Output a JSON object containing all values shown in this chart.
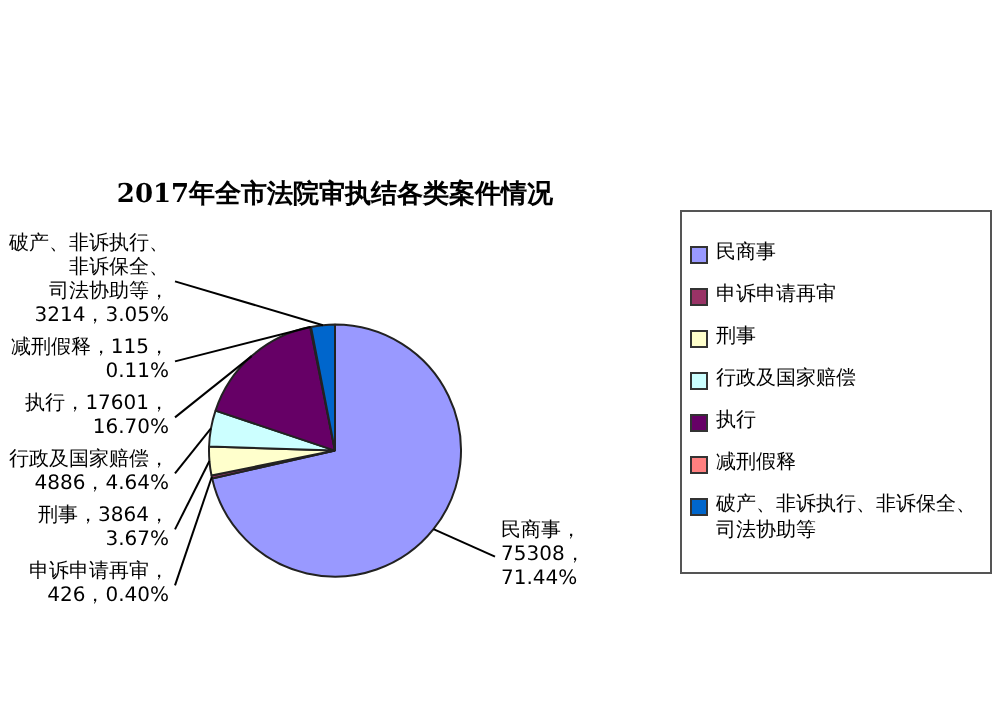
{
  "chart_data": {
    "type": "pie",
    "title": "2017年全市法院审执结各类案件情况",
    "categories": [
      "民商事",
      "申诉申请再审",
      "刑事",
      "行政及国家赔偿",
      "执行",
      "减刑假释",
      "破产、非诉执行、非诉保全、司法协助等"
    ],
    "values": [
      75308,
      426,
      3864,
      4886,
      17601,
      115,
      3214
    ],
    "value_labels": [
      "民商事，75308，71.44%",
      "申诉申请再审，426，0.40%",
      "刑事，3864，3.67%",
      "行政及国家赔偿，4886，4.64%",
      "执行，17601，16.70%",
      "减刑假释，115，0.11%",
      "破产、非诉执行、非诉保全、司法协助等，3214，3.05%"
    ],
    "colors": [
      "#9999ff",
      "#993366",
      "#ffffcc",
      "#ccffff",
      "#660066",
      "#ff8080",
      "#0066cc"
    ],
    "legend": "right"
  }
}
